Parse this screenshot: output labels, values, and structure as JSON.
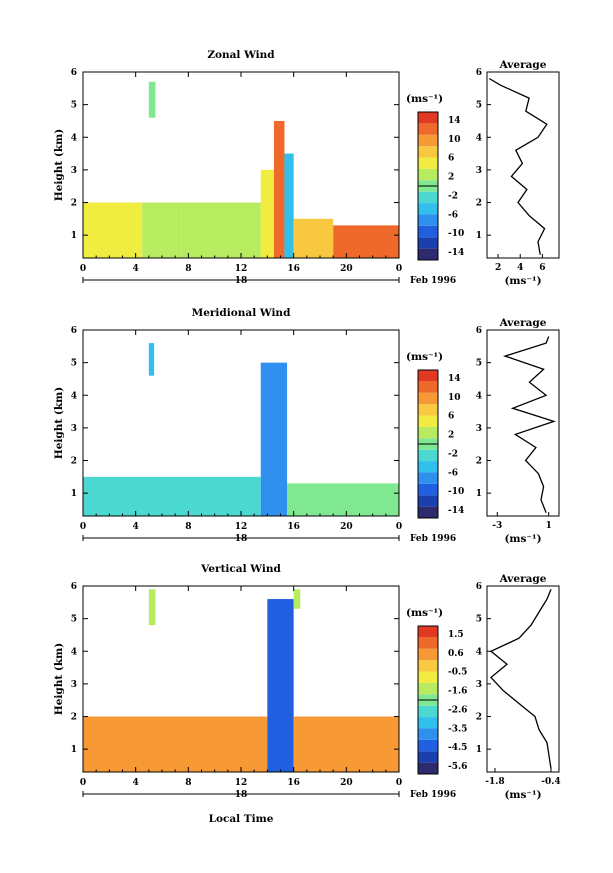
{
  "figure": {
    "x_axis_label": "Local Time",
    "date_day": "18",
    "date_month_year": "Feb 1996",
    "average_axis_unit": "(ms⁻¹)",
    "colorbar_unit": "(ms⁻¹)"
  },
  "chart_data": [
    {
      "type": "heatmap",
      "title": "Zonal Wind",
      "ylabel": "Height (km)",
      "xlabel": "Local Time",
      "x_ticks": [
        "0",
        "4",
        "8",
        "12",
        "16",
        "20",
        "0"
      ],
      "y_ticks": [
        "1",
        "2",
        "3",
        "4",
        "5",
        "6"
      ],
      "xlim": [
        0,
        24
      ],
      "ylim": [
        0.3,
        6.0
      ],
      "colorbar": {
        "unit": "(ms⁻¹)",
        "ticks": [
          "14",
          "10",
          "6",
          "2",
          "-2",
          "-6",
          "-10",
          "-14"
        ],
        "range": [
          -16,
          16
        ]
      },
      "regions": [
        {
          "x": [
            0,
            4.5
          ],
          "y": [
            0.3,
            2.0
          ],
          "value": 4
        },
        {
          "x": [
            4.5,
            7.5
          ],
          "y": [
            0.3,
            2.0
          ],
          "value": 3
        },
        {
          "x": [
            7.5,
            13.5
          ],
          "y": [
            0.3,
            2.0
          ],
          "value": 2
        },
        {
          "x": [
            13.5,
            14.5
          ],
          "y": [
            0.3,
            3.0
          ],
          "value": 5
        },
        {
          "x": [
            14.5,
            15.3
          ],
          "y": [
            0.3,
            4.5
          ],
          "value": 13
        },
        {
          "x": [
            15.3,
            16.0
          ],
          "y": [
            0.3,
            3.5
          ],
          "value": -4
        },
        {
          "x": [
            16.0,
            19.0
          ],
          "y": [
            0.3,
            1.5
          ],
          "value": 8
        },
        {
          "x": [
            19.0,
            24.0
          ],
          "y": [
            0.3,
            1.3
          ],
          "value": 12
        },
        {
          "x": [
            5.0,
            5.5
          ],
          "y": [
            4.6,
            5.7
          ],
          "value": -1
        }
      ],
      "average_profile": {
        "title": "Average",
        "xlabel": "(ms⁻¹)",
        "x_ticks": [
          "2",
          "4",
          "6"
        ],
        "xlim": [
          1,
          7.5
        ],
        "height": [
          0.4,
          0.8,
          1.2,
          1.6,
          2.0,
          2.4,
          2.8,
          3.2,
          3.6,
          4.0,
          4.4,
          4.8,
          5.2,
          5.6,
          5.8
        ],
        "value": [
          5.8,
          5.6,
          6.2,
          4.8,
          3.8,
          4.6,
          3.2,
          4.2,
          3.6,
          5.6,
          6.4,
          4.5,
          4.8,
          2.2,
          1.2
        ]
      }
    },
    {
      "type": "heatmap",
      "title": "Meridional Wind",
      "ylabel": "Height (km)",
      "xlabel": "Local Time",
      "x_ticks": [
        "0",
        "4",
        "8",
        "12",
        "16",
        "20",
        "0"
      ],
      "y_ticks": [
        "1",
        "2",
        "3",
        "4",
        "5",
        "6"
      ],
      "xlim": [
        0,
        24
      ],
      "ylim": [
        0.3,
        6.0
      ],
      "colorbar": {
        "unit": "(ms⁻¹)",
        "ticks": [
          "14",
          "10",
          "6",
          "2",
          "-2",
          "-6",
          "-10",
          "-14"
        ],
        "range": [
          -16,
          16
        ]
      },
      "regions": [
        {
          "x": [
            0,
            13.5
          ],
          "y": [
            0.3,
            1.5
          ],
          "value": -3
        },
        {
          "x": [
            13.5,
            15.5
          ],
          "y": [
            0.3,
            5.0
          ],
          "value": -7
        },
        {
          "x": [
            15.5,
            24.0
          ],
          "y": [
            0.3,
            1.3
          ],
          "value": 1
        },
        {
          "x": [
            5.0,
            5.4
          ],
          "y": [
            4.6,
            5.6
          ],
          "value": -6
        }
      ],
      "average_profile": {
        "title": "Average",
        "xlabel": "(ms⁻¹)",
        "x_ticks": [
          "-3",
          "1"
        ],
        "xlim": [
          -3.8,
          1.8
        ],
        "height": [
          0.4,
          0.8,
          1.2,
          1.6,
          2.0,
          2.4,
          2.8,
          3.2,
          3.6,
          4.0,
          4.4,
          4.8,
          5.2,
          5.6,
          5.8
        ],
        "value": [
          0.8,
          0.4,
          0.6,
          0.2,
          -0.8,
          0.0,
          -1.6,
          1.4,
          -1.8,
          0.8,
          -0.5,
          0.6,
          -2.4,
          0.8,
          1.0
        ]
      }
    },
    {
      "type": "heatmap",
      "title": "Vertical Wind",
      "ylabel": "Height (km)",
      "xlabel": "Local Time",
      "x_ticks": [
        "0",
        "4",
        "8",
        "12",
        "16",
        "20",
        "0"
      ],
      "y_ticks": [
        "1",
        "2",
        "3",
        "4",
        "5",
        "6"
      ],
      "xlim": [
        0,
        24
      ],
      "ylim": [
        0.3,
        6.0
      ],
      "colorbar": {
        "unit": "(ms⁻¹)",
        "ticks": [
          "1.5",
          "0.6",
          "-0.5",
          "-1.6",
          "-2.6",
          "-3.5",
          "-4.5",
          "-5.6"
        ],
        "range": [
          -6,
          2
        ]
      },
      "regions": [
        {
          "x": [
            0,
            14.0
          ],
          "y": [
            0.3,
            2.0
          ],
          "value": 0.3
        },
        {
          "x": [
            14.0,
            16.0
          ],
          "y": [
            0.3,
            5.6
          ],
          "value": -4.5
        },
        {
          "x": [
            16.0,
            24.0
          ],
          "y": [
            0.3,
            2.0
          ],
          "value": 0.5
        },
        {
          "x": [
            5.0,
            5.5
          ],
          "y": [
            4.8,
            5.9
          ],
          "value": -1.5
        },
        {
          "x": [
            16.0,
            16.5
          ],
          "y": [
            5.3,
            5.9
          ],
          "value": -1.5
        }
      ],
      "average_profile": {
        "title": "Average",
        "xlabel": "(ms⁻¹)",
        "x_ticks": [
          "-1.8",
          "-0.4"
        ],
        "xlim": [
          -2.0,
          -0.2
        ],
        "height": [
          0.4,
          0.8,
          1.2,
          1.6,
          2.0,
          2.4,
          2.8,
          3.2,
          3.6,
          4.0,
          4.4,
          4.8,
          5.2,
          5.6,
          5.9
        ],
        "value": [
          -0.4,
          -0.45,
          -0.5,
          -0.7,
          -0.8,
          -1.2,
          -1.6,
          -1.9,
          -1.5,
          -1.9,
          -1.2,
          -0.9,
          -0.7,
          -0.5,
          -0.4
        ]
      }
    }
  ]
}
